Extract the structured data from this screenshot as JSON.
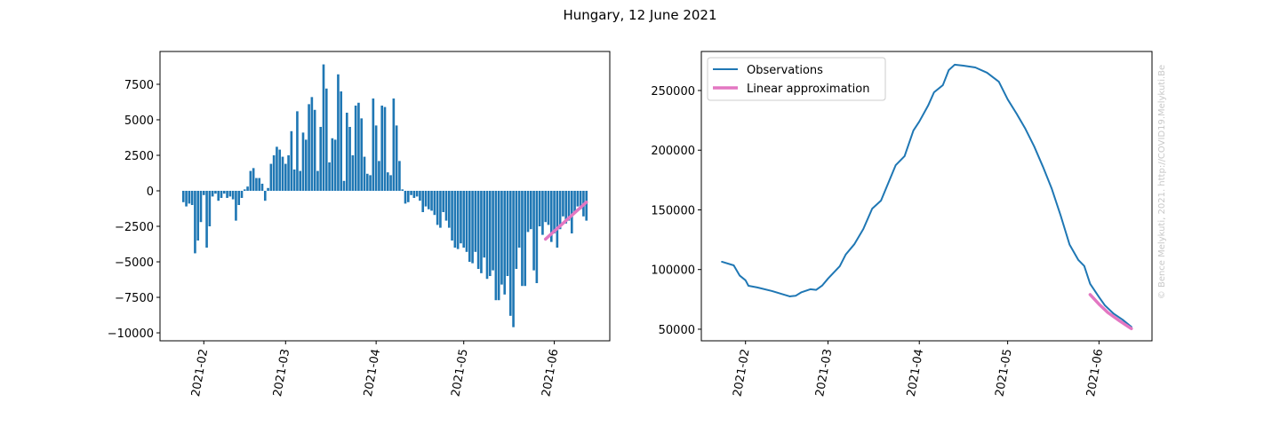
{
  "title": "Hungary, 12 June 2021",
  "watermark": "© Bence Melykuti, 2021. http://COVID19.Melykuti.Be",
  "chart_data": [
    {
      "type": "bar",
      "xlim": [
        "2021-01-17",
        "2021-06-20"
      ],
      "xticks": [
        "2021-02",
        "2021-03",
        "2021-04",
        "2021-05",
        "2021-06"
      ],
      "ylim": [
        -10560,
        9810
      ],
      "yticks": [
        {
          "value": -10000,
          "label": "−10000"
        },
        {
          "value": -7500,
          "label": "−7500"
        },
        {
          "value": -5000,
          "label": "−5000"
        },
        {
          "value": -2500,
          "label": "−2500"
        },
        0,
        2500,
        5000,
        7500
      ],
      "series": [
        {
          "type": "bar",
          "color": "#1f77b4",
          "x": [
            "2021-01-25",
            "2021-01-26",
            "2021-01-27",
            "2021-01-28",
            "2021-01-29",
            "2021-01-30",
            "2021-01-31",
            "2021-02-01",
            "2021-02-02",
            "2021-02-03",
            "2021-02-04",
            "2021-02-05",
            "2021-02-06",
            "2021-02-07",
            "2021-02-08",
            "2021-02-09",
            "2021-02-10",
            "2021-02-11",
            "2021-02-12",
            "2021-02-13",
            "2021-02-14",
            "2021-02-15",
            "2021-02-16",
            "2021-02-17",
            "2021-02-18",
            "2021-02-19",
            "2021-02-20",
            "2021-02-21",
            "2021-02-22",
            "2021-02-23",
            "2021-02-24",
            "2021-02-25",
            "2021-02-26",
            "2021-02-27",
            "2021-02-28",
            "2021-03-01",
            "2021-03-02",
            "2021-03-03",
            "2021-03-04",
            "2021-03-05",
            "2021-03-06",
            "2021-03-07",
            "2021-03-08",
            "2021-03-09",
            "2021-03-10",
            "2021-03-11",
            "2021-03-12",
            "2021-03-13",
            "2021-03-14",
            "2021-03-15",
            "2021-03-16",
            "2021-03-17",
            "2021-03-18",
            "2021-03-19",
            "2021-03-20",
            "2021-03-21",
            "2021-03-22",
            "2021-03-23",
            "2021-03-24",
            "2021-03-25",
            "2021-03-26",
            "2021-03-27",
            "2021-03-28",
            "2021-03-29",
            "2021-03-30",
            "2021-03-31",
            "2021-04-01",
            "2021-04-02",
            "2021-04-03",
            "2021-04-04",
            "2021-04-05",
            "2021-04-06",
            "2021-04-07",
            "2021-04-08",
            "2021-04-09",
            "2021-04-10",
            "2021-04-11",
            "2021-04-12",
            "2021-04-13",
            "2021-04-14",
            "2021-04-15",
            "2021-04-16",
            "2021-04-17",
            "2021-04-18",
            "2021-04-19",
            "2021-04-20",
            "2021-04-21",
            "2021-04-22",
            "2021-04-23",
            "2021-04-24",
            "2021-04-25",
            "2021-04-26",
            "2021-04-27",
            "2021-04-28",
            "2021-04-29",
            "2021-04-30",
            "2021-05-01",
            "2021-05-02",
            "2021-05-03",
            "2021-05-04",
            "2021-05-05",
            "2021-05-06",
            "2021-05-07",
            "2021-05-08",
            "2021-05-09",
            "2021-05-10",
            "2021-05-11",
            "2021-05-12",
            "2021-05-13",
            "2021-05-14",
            "2021-05-15",
            "2021-05-16",
            "2021-05-17",
            "2021-05-18",
            "2021-05-19",
            "2021-05-20",
            "2021-05-21",
            "2021-05-22",
            "2021-05-23",
            "2021-05-24",
            "2021-05-25",
            "2021-05-26",
            "2021-05-27",
            "2021-05-28",
            "2021-05-29",
            "2021-05-30",
            "2021-05-31",
            "2021-06-01",
            "2021-06-02",
            "2021-06-03",
            "2021-06-04",
            "2021-06-05",
            "2021-06-06",
            "2021-06-07",
            "2021-06-08",
            "2021-06-09",
            "2021-06-10",
            "2021-06-11",
            "2021-06-12"
          ],
          "values": [
            -800,
            -1100,
            -900,
            -1000,
            -4400,
            -3500,
            -2200,
            -300,
            -4000,
            -2500,
            -400,
            -200,
            -700,
            -500,
            -200,
            -500,
            -400,
            -600,
            -2100,
            -1000,
            -500,
            100,
            300,
            1400,
            1600,
            900,
            900,
            500,
            -700,
            200,
            1900,
            2500,
            3100,
            2900,
            2400,
            1900,
            2500,
            4200,
            1500,
            5600,
            1400,
            4100,
            3600,
            6100,
            6600,
            5700,
            1400,
            4500,
            8900,
            7200,
            2000,
            3700,
            3600,
            8200,
            7000,
            700,
            5500,
            4500,
            2500,
            6000,
            6200,
            5100,
            2400,
            1200,
            1100,
            6500,
            4600,
            2100,
            6000,
            5900,
            1300,
            1100,
            6500,
            4600,
            2100,
            100,
            -900,
            -800,
            -300,
            -500,
            -400,
            -700,
            -1500,
            -1100,
            -1300,
            -1400,
            -1700,
            -2400,
            -2600,
            -1500,
            -2100,
            -2600,
            -3500,
            -4000,
            -4100,
            -3700,
            -4000,
            -4300,
            -5000,
            -5100,
            -4300,
            -5500,
            -5800,
            -4700,
            -6200,
            -6000,
            -5600,
            -7700,
            -7700,
            -6600,
            -7300,
            -6000,
            -8800,
            -9600,
            -5500,
            -4000,
            -6700,
            -6700,
            -2900,
            -2700,
            -5600,
            -6500,
            -2500,
            -3100,
            -2200,
            -2400,
            -3600,
            -3000,
            -4000,
            -2700,
            -1800,
            -2300,
            -2100,
            -3000,
            -1500,
            -1100,
            -1300,
            -1800,
            -2100
          ]
        },
        {
          "type": "line",
          "color": "#e377c2",
          "x": [
            "2021-05-29",
            "2021-06-12"
          ],
          "values": [
            -3400,
            -800
          ]
        }
      ]
    },
    {
      "type": "line",
      "xlim": [
        "2021-01-17",
        "2021-06-19"
      ],
      "xticks": [
        "2021-02",
        "2021-03",
        "2021-04",
        "2021-05",
        "2021-06"
      ],
      "ylim": [
        40300,
        282700
      ],
      "yticks": [
        50000,
        100000,
        150000,
        200000,
        250000
      ],
      "legend": "upper left",
      "series": [
        {
          "name": "Observations",
          "color": "#1f77b4",
          "x": [
            "2021-01-24",
            "2021-01-28",
            "2021-01-30",
            "2021-02-01",
            "2021-02-02",
            "2021-02-05",
            "2021-02-10",
            "2021-02-14",
            "2021-02-16",
            "2021-02-18",
            "2021-02-20",
            "2021-02-23",
            "2021-02-25",
            "2021-02-27",
            "2021-03-01",
            "2021-03-03",
            "2021-03-05",
            "2021-03-07",
            "2021-03-10",
            "2021-03-13",
            "2021-03-16",
            "2021-03-19",
            "2021-03-22",
            "2021-03-24",
            "2021-03-27",
            "2021-03-30",
            "2021-04-01",
            "2021-04-04",
            "2021-04-06",
            "2021-04-09",
            "2021-04-11",
            "2021-04-13",
            "2021-04-16",
            "2021-04-20",
            "2021-04-24",
            "2021-04-28",
            "2021-05-01",
            "2021-05-04",
            "2021-05-07",
            "2021-05-10",
            "2021-05-13",
            "2021-05-16",
            "2021-05-19",
            "2021-05-22",
            "2021-05-25",
            "2021-05-27",
            "2021-05-29",
            "2021-06-01",
            "2021-06-03",
            "2021-06-06",
            "2021-06-09",
            "2021-06-12"
          ],
          "values": [
            106500,
            103500,
            95000,
            91000,
            86400,
            85000,
            82000,
            79000,
            77500,
            78000,
            81000,
            83500,
            83000,
            86500,
            92400,
            97600,
            102800,
            112500,
            121400,
            134000,
            151000,
            157800,
            175600,
            187500,
            195000,
            216500,
            224000,
            237400,
            248500,
            254500,
            267100,
            271600,
            270800,
            269300,
            264900,
            257400,
            242600,
            230700,
            218000,
            203200,
            186000,
            167500,
            145200,
            121000,
            108000,
            103000,
            88000,
            77000,
            70000,
            63000,
            58000,
            52000
          ]
        },
        {
          "name": "Linear approximation",
          "color": "#e377c2",
          "x": [
            "2021-05-29",
            "2021-06-01",
            "2021-06-04",
            "2021-06-08",
            "2021-06-12"
          ],
          "values": [
            79000,
            71000,
            64000,
            57000,
            50500
          ]
        }
      ]
    }
  ]
}
